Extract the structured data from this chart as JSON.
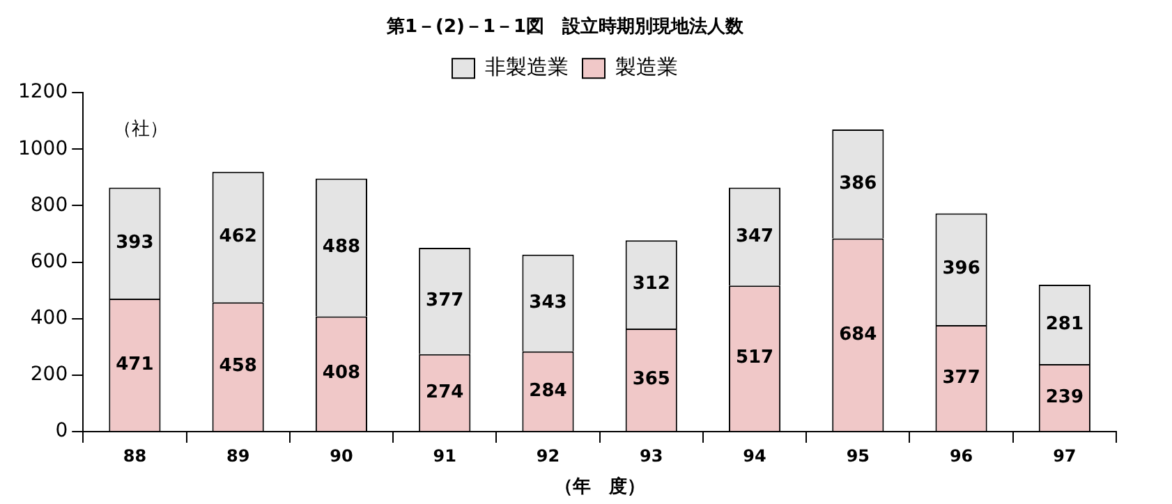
{
  "chart_data": {
    "type": "bar",
    "title": "第1－(2)－1－1図　設立時期別現地法人数",
    "ylabel": "（社）",
    "xlabel": "（年　度）",
    "categories": [
      "88",
      "89",
      "90",
      "91",
      "92",
      "93",
      "94",
      "95",
      "96",
      "97"
    ],
    "series": [
      {
        "name": "製造業",
        "color": "#f0c8c8",
        "values": [
          471,
          458,
          408,
          274,
          284,
          365,
          517,
          684,
          377,
          239
        ]
      },
      {
        "name": "非製造業",
        "color": "#e4e4e4",
        "values": [
          393,
          462,
          488,
          377,
          343,
          312,
          347,
          386,
          396,
          281
        ]
      }
    ],
    "stacked": true,
    "ylim": [
      0,
      1200
    ],
    "yticks": [
      0,
      200,
      400,
      600,
      800,
      1000,
      1200
    ],
    "grid": false,
    "legend": "top",
    "data_labels": true
  }
}
